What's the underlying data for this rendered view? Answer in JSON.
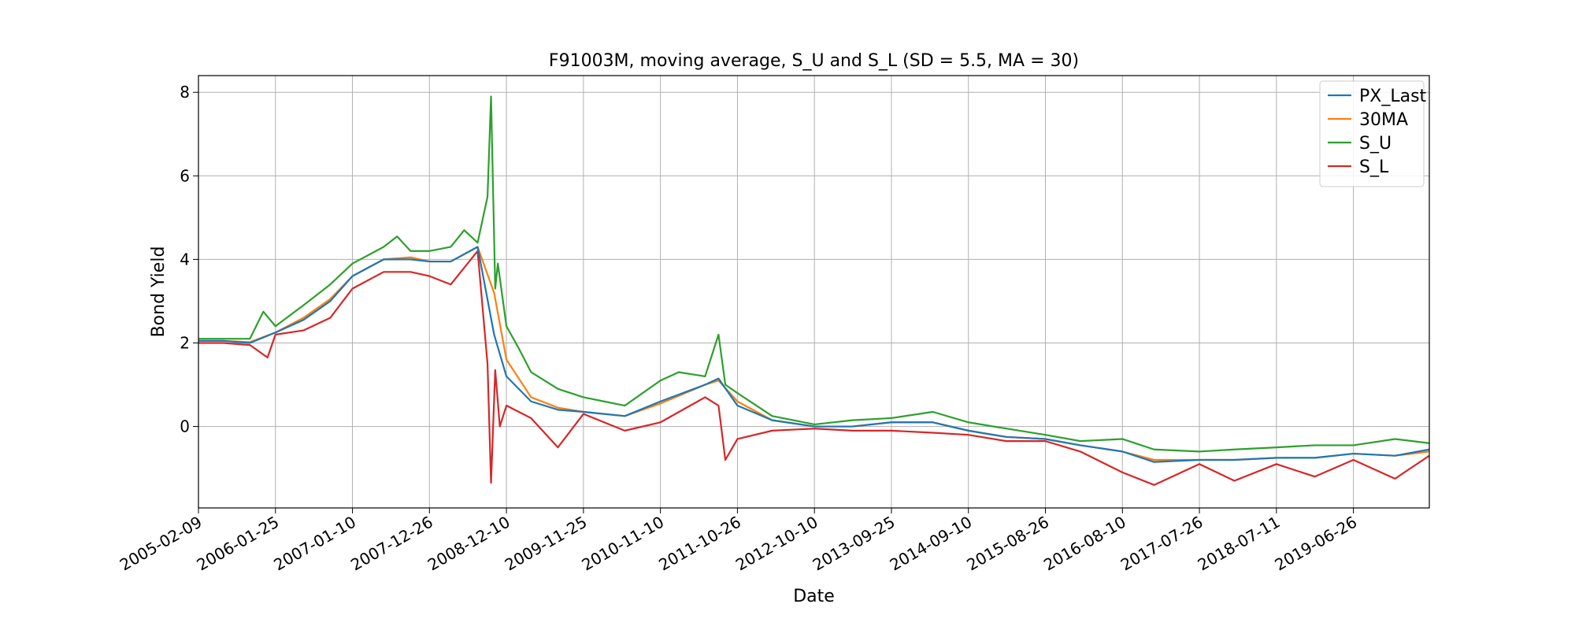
{
  "chart_data": {
    "type": "line",
    "title": "F91003M, moving average, S_U and S_L (SD = 5.5, MA = 30)",
    "xlabel": "Date",
    "ylabel": "Bond Yield",
    "x_tick_labels": [
      "2005-02-09",
      "2006-01-25",
      "2007-01-10",
      "2007-12-26",
      "2008-12-10",
      "2009-11-25",
      "2010-11-10",
      "2011-10-26",
      "2012-10-10",
      "2013-09-25",
      "2014-09-10",
      "2015-08-26",
      "2016-08-10",
      "2017-07-26",
      "2018-07-11",
      "2019-06-26"
    ],
    "xlim": [
      "2005-02-09",
      "2020-06-05"
    ],
    "y_ticks": [
      0,
      2,
      4,
      6,
      8
    ],
    "ylim": [
      -1.95,
      8.4
    ],
    "grid": true,
    "legend_position": "top-right",
    "series": [
      {
        "name": "PX_Last",
        "color": "#1f77b4",
        "values": [
          [
            "2005-02-09",
            2.05
          ],
          [
            "2005-06-01",
            2.05
          ],
          [
            "2005-10-01",
            2.0
          ],
          [
            "2006-01-25",
            2.25
          ],
          [
            "2006-06-01",
            2.55
          ],
          [
            "2006-10-01",
            3.0
          ],
          [
            "2007-01-10",
            3.6
          ],
          [
            "2007-06-01",
            4.0
          ],
          [
            "2007-10-01",
            4.0
          ],
          [
            "2007-12-26",
            3.95
          ],
          [
            "2008-04-01",
            3.95
          ],
          [
            "2008-08-01",
            4.3
          ],
          [
            "2008-10-15",
            2.2
          ],
          [
            "2008-12-10",
            1.2
          ],
          [
            "2009-04-01",
            0.6
          ],
          [
            "2009-08-01",
            0.4
          ],
          [
            "2009-11-25",
            0.35
          ],
          [
            "2010-06-01",
            0.25
          ],
          [
            "2010-11-10",
            0.6
          ],
          [
            "2011-06-01",
            1.0
          ],
          [
            "2011-08-01",
            1.15
          ],
          [
            "2011-10-26",
            0.5
          ],
          [
            "2012-04-01",
            0.15
          ],
          [
            "2012-10-10",
            0.0
          ],
          [
            "2013-04-01",
            0.0
          ],
          [
            "2013-09-25",
            0.1
          ],
          [
            "2014-04-01",
            0.1
          ],
          [
            "2014-09-10",
            -0.1
          ],
          [
            "2015-03-01",
            -0.25
          ],
          [
            "2015-08-26",
            -0.3
          ],
          [
            "2016-02-01",
            -0.45
          ],
          [
            "2016-08-10",
            -0.6
          ],
          [
            "2017-01-01",
            -0.85
          ],
          [
            "2017-07-26",
            -0.8
          ],
          [
            "2018-01-01",
            -0.8
          ],
          [
            "2018-07-11",
            -0.75
          ],
          [
            "2019-01-01",
            -0.75
          ],
          [
            "2019-06-26",
            -0.65
          ],
          [
            "2020-01-01",
            -0.7
          ],
          [
            "2020-06-05",
            -0.55
          ]
        ]
      },
      {
        "name": "30MA",
        "color": "#ff7f0e",
        "values": [
          [
            "2005-02-09",
            2.05
          ],
          [
            "2005-06-01",
            2.05
          ],
          [
            "2005-10-01",
            2.02
          ],
          [
            "2006-01-25",
            2.25
          ],
          [
            "2006-06-01",
            2.6
          ],
          [
            "2006-10-01",
            3.05
          ],
          [
            "2007-01-10",
            3.6
          ],
          [
            "2007-06-01",
            4.0
          ],
          [
            "2007-10-01",
            4.05
          ],
          [
            "2007-12-26",
            3.95
          ],
          [
            "2008-04-01",
            3.95
          ],
          [
            "2008-08-01",
            4.3
          ],
          [
            "2008-10-15",
            3.2
          ],
          [
            "2008-12-10",
            1.6
          ],
          [
            "2009-04-01",
            0.7
          ],
          [
            "2009-08-01",
            0.45
          ],
          [
            "2009-11-25",
            0.35
          ],
          [
            "2010-06-01",
            0.25
          ],
          [
            "2010-11-10",
            0.55
          ],
          [
            "2011-06-01",
            1.0
          ],
          [
            "2011-08-01",
            1.1
          ],
          [
            "2011-10-26",
            0.6
          ],
          [
            "2012-04-01",
            0.15
          ],
          [
            "2012-10-10",
            0.0
          ],
          [
            "2013-04-01",
            0.0
          ],
          [
            "2013-09-25",
            0.1
          ],
          [
            "2014-04-01",
            0.1
          ],
          [
            "2014-09-10",
            -0.1
          ],
          [
            "2015-03-01",
            -0.25
          ],
          [
            "2015-08-26",
            -0.3
          ],
          [
            "2016-02-01",
            -0.45
          ],
          [
            "2016-08-10",
            -0.6
          ],
          [
            "2017-01-01",
            -0.8
          ],
          [
            "2017-07-26",
            -0.8
          ],
          [
            "2018-01-01",
            -0.8
          ],
          [
            "2018-07-11",
            -0.75
          ],
          [
            "2019-01-01",
            -0.75
          ],
          [
            "2019-06-26",
            -0.65
          ],
          [
            "2020-01-01",
            -0.7
          ],
          [
            "2020-06-05",
            -0.6
          ]
        ]
      },
      {
        "name": "S_U",
        "color": "#2ca02c",
        "values": [
          [
            "2005-02-09",
            2.1
          ],
          [
            "2005-06-01",
            2.1
          ],
          [
            "2005-10-01",
            2.1
          ],
          [
            "2005-12-01",
            2.75
          ],
          [
            "2006-01-25",
            2.4
          ],
          [
            "2006-06-01",
            2.9
          ],
          [
            "2006-10-01",
            3.4
          ],
          [
            "2007-01-10",
            3.9
          ],
          [
            "2007-06-01",
            4.3
          ],
          [
            "2007-08-01",
            4.55
          ],
          [
            "2007-10-01",
            4.2
          ],
          [
            "2007-12-26",
            4.2
          ],
          [
            "2008-04-01",
            4.3
          ],
          [
            "2008-06-01",
            4.7
          ],
          [
            "2008-08-01",
            4.4
          ],
          [
            "2008-09-15",
            5.5
          ],
          [
            "2008-10-01",
            7.9
          ],
          [
            "2008-10-20",
            3.3
          ],
          [
            "2008-11-01",
            3.9
          ],
          [
            "2008-12-10",
            2.4
          ],
          [
            "2009-02-01",
            1.9
          ],
          [
            "2009-04-01",
            1.3
          ],
          [
            "2009-08-01",
            0.9
          ],
          [
            "2009-11-25",
            0.7
          ],
          [
            "2010-06-01",
            0.5
          ],
          [
            "2010-11-10",
            1.1
          ],
          [
            "2011-02-01",
            1.3
          ],
          [
            "2011-06-01",
            1.2
          ],
          [
            "2011-08-01",
            2.2
          ],
          [
            "2011-09-01",
            1.0
          ],
          [
            "2011-10-26",
            0.8
          ],
          [
            "2012-04-01",
            0.25
          ],
          [
            "2012-10-10",
            0.05
          ],
          [
            "2013-04-01",
            0.15
          ],
          [
            "2013-09-25",
            0.2
          ],
          [
            "2014-04-01",
            0.35
          ],
          [
            "2014-09-10",
            0.1
          ],
          [
            "2015-03-01",
            -0.05
          ],
          [
            "2015-08-26",
            -0.2
          ],
          [
            "2016-02-01",
            -0.35
          ],
          [
            "2016-08-10",
            -0.3
          ],
          [
            "2017-01-01",
            -0.55
          ],
          [
            "2017-07-26",
            -0.6
          ],
          [
            "2018-01-01",
            -0.55
          ],
          [
            "2018-07-11",
            -0.5
          ],
          [
            "2019-01-01",
            -0.45
          ],
          [
            "2019-06-26",
            -0.45
          ],
          [
            "2020-01-01",
            -0.3
          ],
          [
            "2020-06-05",
            -0.4
          ]
        ]
      },
      {
        "name": "S_L",
        "color": "#d62728",
        "values": [
          [
            "2005-02-09",
            2.0
          ],
          [
            "2005-06-01",
            2.0
          ],
          [
            "2005-10-01",
            1.95
          ],
          [
            "2005-12-20",
            1.65
          ],
          [
            "2006-01-25",
            2.2
          ],
          [
            "2006-06-01",
            2.3
          ],
          [
            "2006-10-01",
            2.6
          ],
          [
            "2007-01-10",
            3.3
          ],
          [
            "2007-06-01",
            3.7
          ],
          [
            "2007-10-01",
            3.7
          ],
          [
            "2007-12-26",
            3.6
          ],
          [
            "2008-04-01",
            3.4
          ],
          [
            "2008-08-01",
            4.2
          ],
          [
            "2008-09-15",
            1.5
          ],
          [
            "2008-10-01",
            -1.35
          ],
          [
            "2008-10-20",
            1.35
          ],
          [
            "2008-11-10",
            0.0
          ],
          [
            "2008-12-10",
            0.5
          ],
          [
            "2009-04-01",
            0.2
          ],
          [
            "2009-08-01",
            -0.5
          ],
          [
            "2009-11-25",
            0.3
          ],
          [
            "2010-06-01",
            -0.1
          ],
          [
            "2010-11-10",
            0.1
          ],
          [
            "2011-06-01",
            0.7
          ],
          [
            "2011-08-01",
            0.5
          ],
          [
            "2011-09-01",
            -0.8
          ],
          [
            "2011-10-26",
            -0.3
          ],
          [
            "2012-04-01",
            -0.1
          ],
          [
            "2012-10-10",
            -0.05
          ],
          [
            "2013-04-01",
            -0.1
          ],
          [
            "2013-09-25",
            -0.1
          ],
          [
            "2014-04-01",
            -0.15
          ],
          [
            "2014-09-10",
            -0.2
          ],
          [
            "2015-03-01",
            -0.35
          ],
          [
            "2015-08-26",
            -0.35
          ],
          [
            "2016-02-01",
            -0.6
          ],
          [
            "2016-08-10",
            -1.1
          ],
          [
            "2017-01-01",
            -1.4
          ],
          [
            "2017-07-26",
            -0.9
          ],
          [
            "2018-01-01",
            -1.3
          ],
          [
            "2018-07-11",
            -0.9
          ],
          [
            "2019-01-01",
            -1.2
          ],
          [
            "2019-06-26",
            -0.8
          ],
          [
            "2020-01-01",
            -1.25
          ],
          [
            "2020-06-05",
            -0.7
          ]
        ]
      }
    ]
  }
}
